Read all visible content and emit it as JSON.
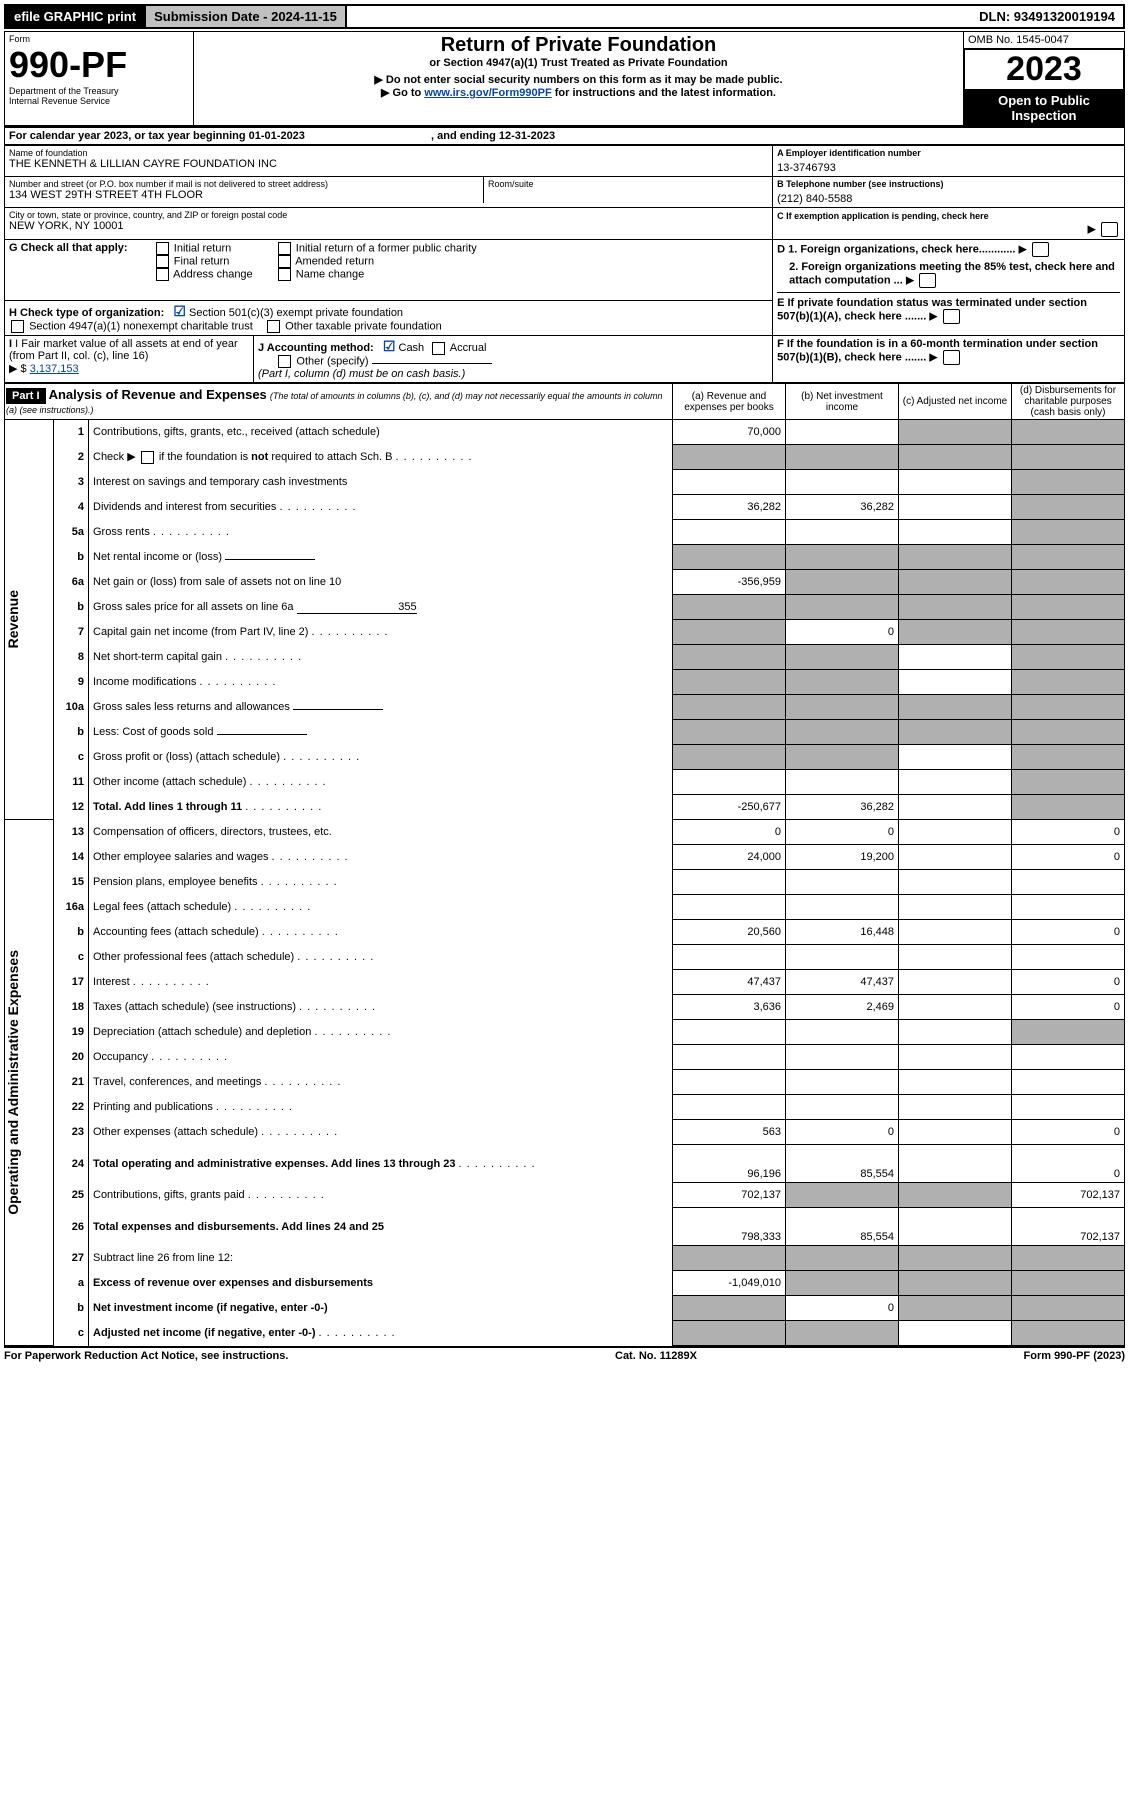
{
  "topbar": {
    "efile": "efile GRAPHIC print",
    "submission_label": "Submission Date - 2024-11-15",
    "dln": "DLN: 93491320019194"
  },
  "header": {
    "form_word": "Form",
    "form_no": "990-PF",
    "dept1": "Department of the Treasury",
    "dept2": "Internal Revenue Service",
    "title": "Return of Private Foundation",
    "subtitle": "or Section 4947(a)(1) Trust Treated as Private Foundation",
    "note1": "Do not enter social security numbers on this form as it may be made public.",
    "note2_a": "Go to ",
    "note2_link": "www.irs.gov/Form990PF",
    "note2_b": " for instructions and the latest information.",
    "omb": "OMB No. 1545-0047",
    "year": "2023",
    "open": "Open to Public Inspection"
  },
  "cal": {
    "line": "For calendar year 2023, or tax year beginning 01-01-2023",
    "ending": ", and ending 12-31-2023"
  },
  "id": {
    "name_label": "Name of foundation",
    "name": "THE KENNETH & LILLIAN CAYRE FOUNDATION INC",
    "addr_label": "Number and street (or P.O. box number if mail is not delivered to street address)",
    "addr": "134 WEST 29TH STREET 4TH FLOOR",
    "room_label": "Room/suite",
    "city_label": "City or town, state or province, country, and ZIP or foreign postal code",
    "city": "NEW YORK, NY  10001",
    "a_label": "A Employer identification number",
    "a_val": "13-3746793",
    "b_label": "B Telephone number (see instructions)",
    "b_val": "(212) 840-5588",
    "c_label": "C If exemption application is pending, check here"
  },
  "g": {
    "label": "G Check all that apply:",
    "o1": "Initial return",
    "o2": "Final return",
    "o3": "Address change",
    "o4": "Initial return of a former public charity",
    "o5": "Amended return",
    "o6": "Name change"
  },
  "h": {
    "label": "H Check type of organization:",
    "o1": "Section 501(c)(3) exempt private foundation",
    "o2": "Section 4947(a)(1) nonexempt charitable trust",
    "o3": "Other taxable private foundation"
  },
  "i": {
    "label": "I Fair market value of all assets at end of year (from Part II, col. (c), line 16)",
    "val": "3,137,153"
  },
  "j": {
    "label": "J Accounting method:",
    "o1": "Cash",
    "o2": "Accrual",
    "o3": "Other (specify)",
    "note": "(Part I, column (d) must be on cash basis.)"
  },
  "d": {
    "d1": "D 1. Foreign organizations, check here............",
    "d2": "2. Foreign organizations meeting the 85% test, check here and attach computation ...",
    "e": "E  If private foundation status was terminated under section 507(b)(1)(A), check here .......",
    "f": "F  If the foundation is in a 60-month termination under section 507(b)(1)(B), check here ......."
  },
  "part1": {
    "label": "Part I",
    "title": "Analysis of Revenue and Expenses",
    "note": " (The total of amounts in columns (b), (c), and (d) may not necessarily equal the amounts in column (a) (see instructions).)",
    "col_a": "(a)   Revenue and expenses per books",
    "col_b": "(b)   Net investment income",
    "col_c": "(c)   Adjusted net income",
    "col_d": "(d)   Disbursements for charitable purposes (cash basis only)"
  },
  "sections": {
    "revenue": "Revenue",
    "expenses": "Operating and Administrative Expenses"
  },
  "rows": [
    {
      "n": "1",
      "t": "Contributions, gifts, grants, etc., received (attach schedule)",
      "a": "70,000",
      "b": "",
      "c": "shade",
      "d": "shade"
    },
    {
      "n": "2",
      "t": "Check ▶ ☐ if the foundation is not required to attach Sch. B",
      "html": true,
      "a": "shade",
      "b": "shade",
      "c": "shade",
      "d": "shade"
    },
    {
      "n": "3",
      "t": "Interest on savings and temporary cash investments",
      "a": "",
      "b": "",
      "c": "",
      "d": "shade"
    },
    {
      "n": "4",
      "t": "Dividends and interest from securities",
      "dots": true,
      "a": "36,282",
      "b": "36,282",
      "c": "",
      "d": "shade"
    },
    {
      "n": "5a",
      "t": "Gross rents",
      "dots": true,
      "a": "",
      "b": "",
      "c": "",
      "d": "shade"
    },
    {
      "n": "b",
      "t": "Net rental income or (loss)",
      "inline": true,
      "a": "shade",
      "b": "shade",
      "c": "shade",
      "d": "shade"
    },
    {
      "n": "6a",
      "t": "Net gain or (loss) from sale of assets not on line 10",
      "a": "-356,959",
      "b": "shade",
      "c": "shade",
      "d": "shade"
    },
    {
      "n": "b",
      "t": "Gross sales price for all assets on line 6a",
      "inlineval": "355",
      "a": "shade",
      "b": "shade",
      "c": "shade",
      "d": "shade"
    },
    {
      "n": "7",
      "t": "Capital gain net income (from Part IV, line 2)",
      "dots": true,
      "a": "shade",
      "b": "0",
      "c": "shade",
      "d": "shade"
    },
    {
      "n": "8",
      "t": "Net short-term capital gain",
      "dots": true,
      "a": "shade",
      "b": "shade",
      "c": "",
      "d": "shade"
    },
    {
      "n": "9",
      "t": "Income modifications",
      "dots": true,
      "a": "shade",
      "b": "shade",
      "c": "",
      "d": "shade"
    },
    {
      "n": "10a",
      "t": "Gross sales less returns and allowances",
      "inline": true,
      "a": "shade",
      "b": "shade",
      "c": "shade",
      "d": "shade"
    },
    {
      "n": "b",
      "t": "Less: Cost of goods sold",
      "dots": true,
      "inline": true,
      "a": "shade",
      "b": "shade",
      "c": "shade",
      "d": "shade"
    },
    {
      "n": "c",
      "t": "Gross profit or (loss) (attach schedule)",
      "dots": true,
      "a": "shade",
      "b": "shade",
      "c": "",
      "d": "shade"
    },
    {
      "n": "11",
      "t": "Other income (attach schedule)",
      "dots": true,
      "a": "",
      "b": "",
      "c": "",
      "d": "shade"
    },
    {
      "n": "12",
      "t": "Total. Add lines 1 through 11",
      "bold": true,
      "dots": true,
      "a": "-250,677",
      "b": "36,282",
      "c": "",
      "d": "shade"
    },
    {
      "n": "13",
      "t": "Compensation of officers, directors, trustees, etc.",
      "a": "0",
      "b": "0",
      "c": "",
      "d": "0"
    },
    {
      "n": "14",
      "t": "Other employee salaries and wages",
      "dots": true,
      "a": "24,000",
      "b": "19,200",
      "c": "",
      "d": "0"
    },
    {
      "n": "15",
      "t": "Pension plans, employee benefits",
      "dots": true,
      "a": "",
      "b": "",
      "c": "",
      "d": ""
    },
    {
      "n": "16a",
      "t": "Legal fees (attach schedule)",
      "dots": true,
      "a": "",
      "b": "",
      "c": "",
      "d": ""
    },
    {
      "n": "b",
      "t": "Accounting fees (attach schedule)",
      "dots": true,
      "a": "20,560",
      "b": "16,448",
      "c": "",
      "d": "0"
    },
    {
      "n": "c",
      "t": "Other professional fees (attach schedule)",
      "dots": true,
      "a": "",
      "b": "",
      "c": "",
      "d": ""
    },
    {
      "n": "17",
      "t": "Interest",
      "dots": true,
      "a": "47,437",
      "b": "47,437",
      "c": "",
      "d": "0"
    },
    {
      "n": "18",
      "t": "Taxes (attach schedule) (see instructions)",
      "dots": true,
      "a": "3,636",
      "b": "2,469",
      "c": "",
      "d": "0"
    },
    {
      "n": "19",
      "t": "Depreciation (attach schedule) and depletion",
      "dots": true,
      "a": "",
      "b": "",
      "c": "",
      "d": "shade"
    },
    {
      "n": "20",
      "t": "Occupancy",
      "dots": true,
      "a": "",
      "b": "",
      "c": "",
      "d": ""
    },
    {
      "n": "21",
      "t": "Travel, conferences, and meetings",
      "dots": true,
      "a": "",
      "b": "",
      "c": "",
      "d": ""
    },
    {
      "n": "22",
      "t": "Printing and publications",
      "dots": true,
      "a": "",
      "b": "",
      "c": "",
      "d": ""
    },
    {
      "n": "23",
      "t": "Other expenses (attach schedule)",
      "dots": true,
      "a": "563",
      "b": "0",
      "c": "",
      "d": "0"
    },
    {
      "n": "24",
      "t": "Total operating and administrative expenses. Add lines 13 through 23",
      "bold": true,
      "dots": true,
      "a": "96,196",
      "b": "85,554",
      "c": "",
      "d": "0",
      "tall": true
    },
    {
      "n": "25",
      "t": "Contributions, gifts, grants paid",
      "dots": true,
      "a": "702,137",
      "b": "shade",
      "c": "shade",
      "d": "702,137"
    },
    {
      "n": "26",
      "t": "Total expenses and disbursements. Add lines 24 and 25",
      "bold": true,
      "a": "798,333",
      "b": "85,554",
      "c": "",
      "d": "702,137",
      "tall": true
    },
    {
      "n": "27",
      "t": "Subtract line 26 from line 12:",
      "a": "shade",
      "b": "shade",
      "c": "shade",
      "d": "shade"
    },
    {
      "n": "a",
      "t": "Excess of revenue over expenses and disbursements",
      "bold": true,
      "a": "-1,049,010",
      "b": "shade",
      "c": "shade",
      "d": "shade"
    },
    {
      "n": "b",
      "t": "Net investment income (if negative, enter -0-)",
      "bold": true,
      "a": "shade",
      "b": "0",
      "c": "shade",
      "d": "shade"
    },
    {
      "n": "c",
      "t": "Adjusted net income (if negative, enter -0-)",
      "bold": true,
      "dots": true,
      "a": "shade",
      "b": "shade",
      "c": "",
      "d": "shade"
    }
  ],
  "footer": {
    "left": "For Paperwork Reduction Act Notice, see instructions.",
    "center": "Cat. No. 11289X",
    "right": "Form 990-PF (2023)"
  }
}
